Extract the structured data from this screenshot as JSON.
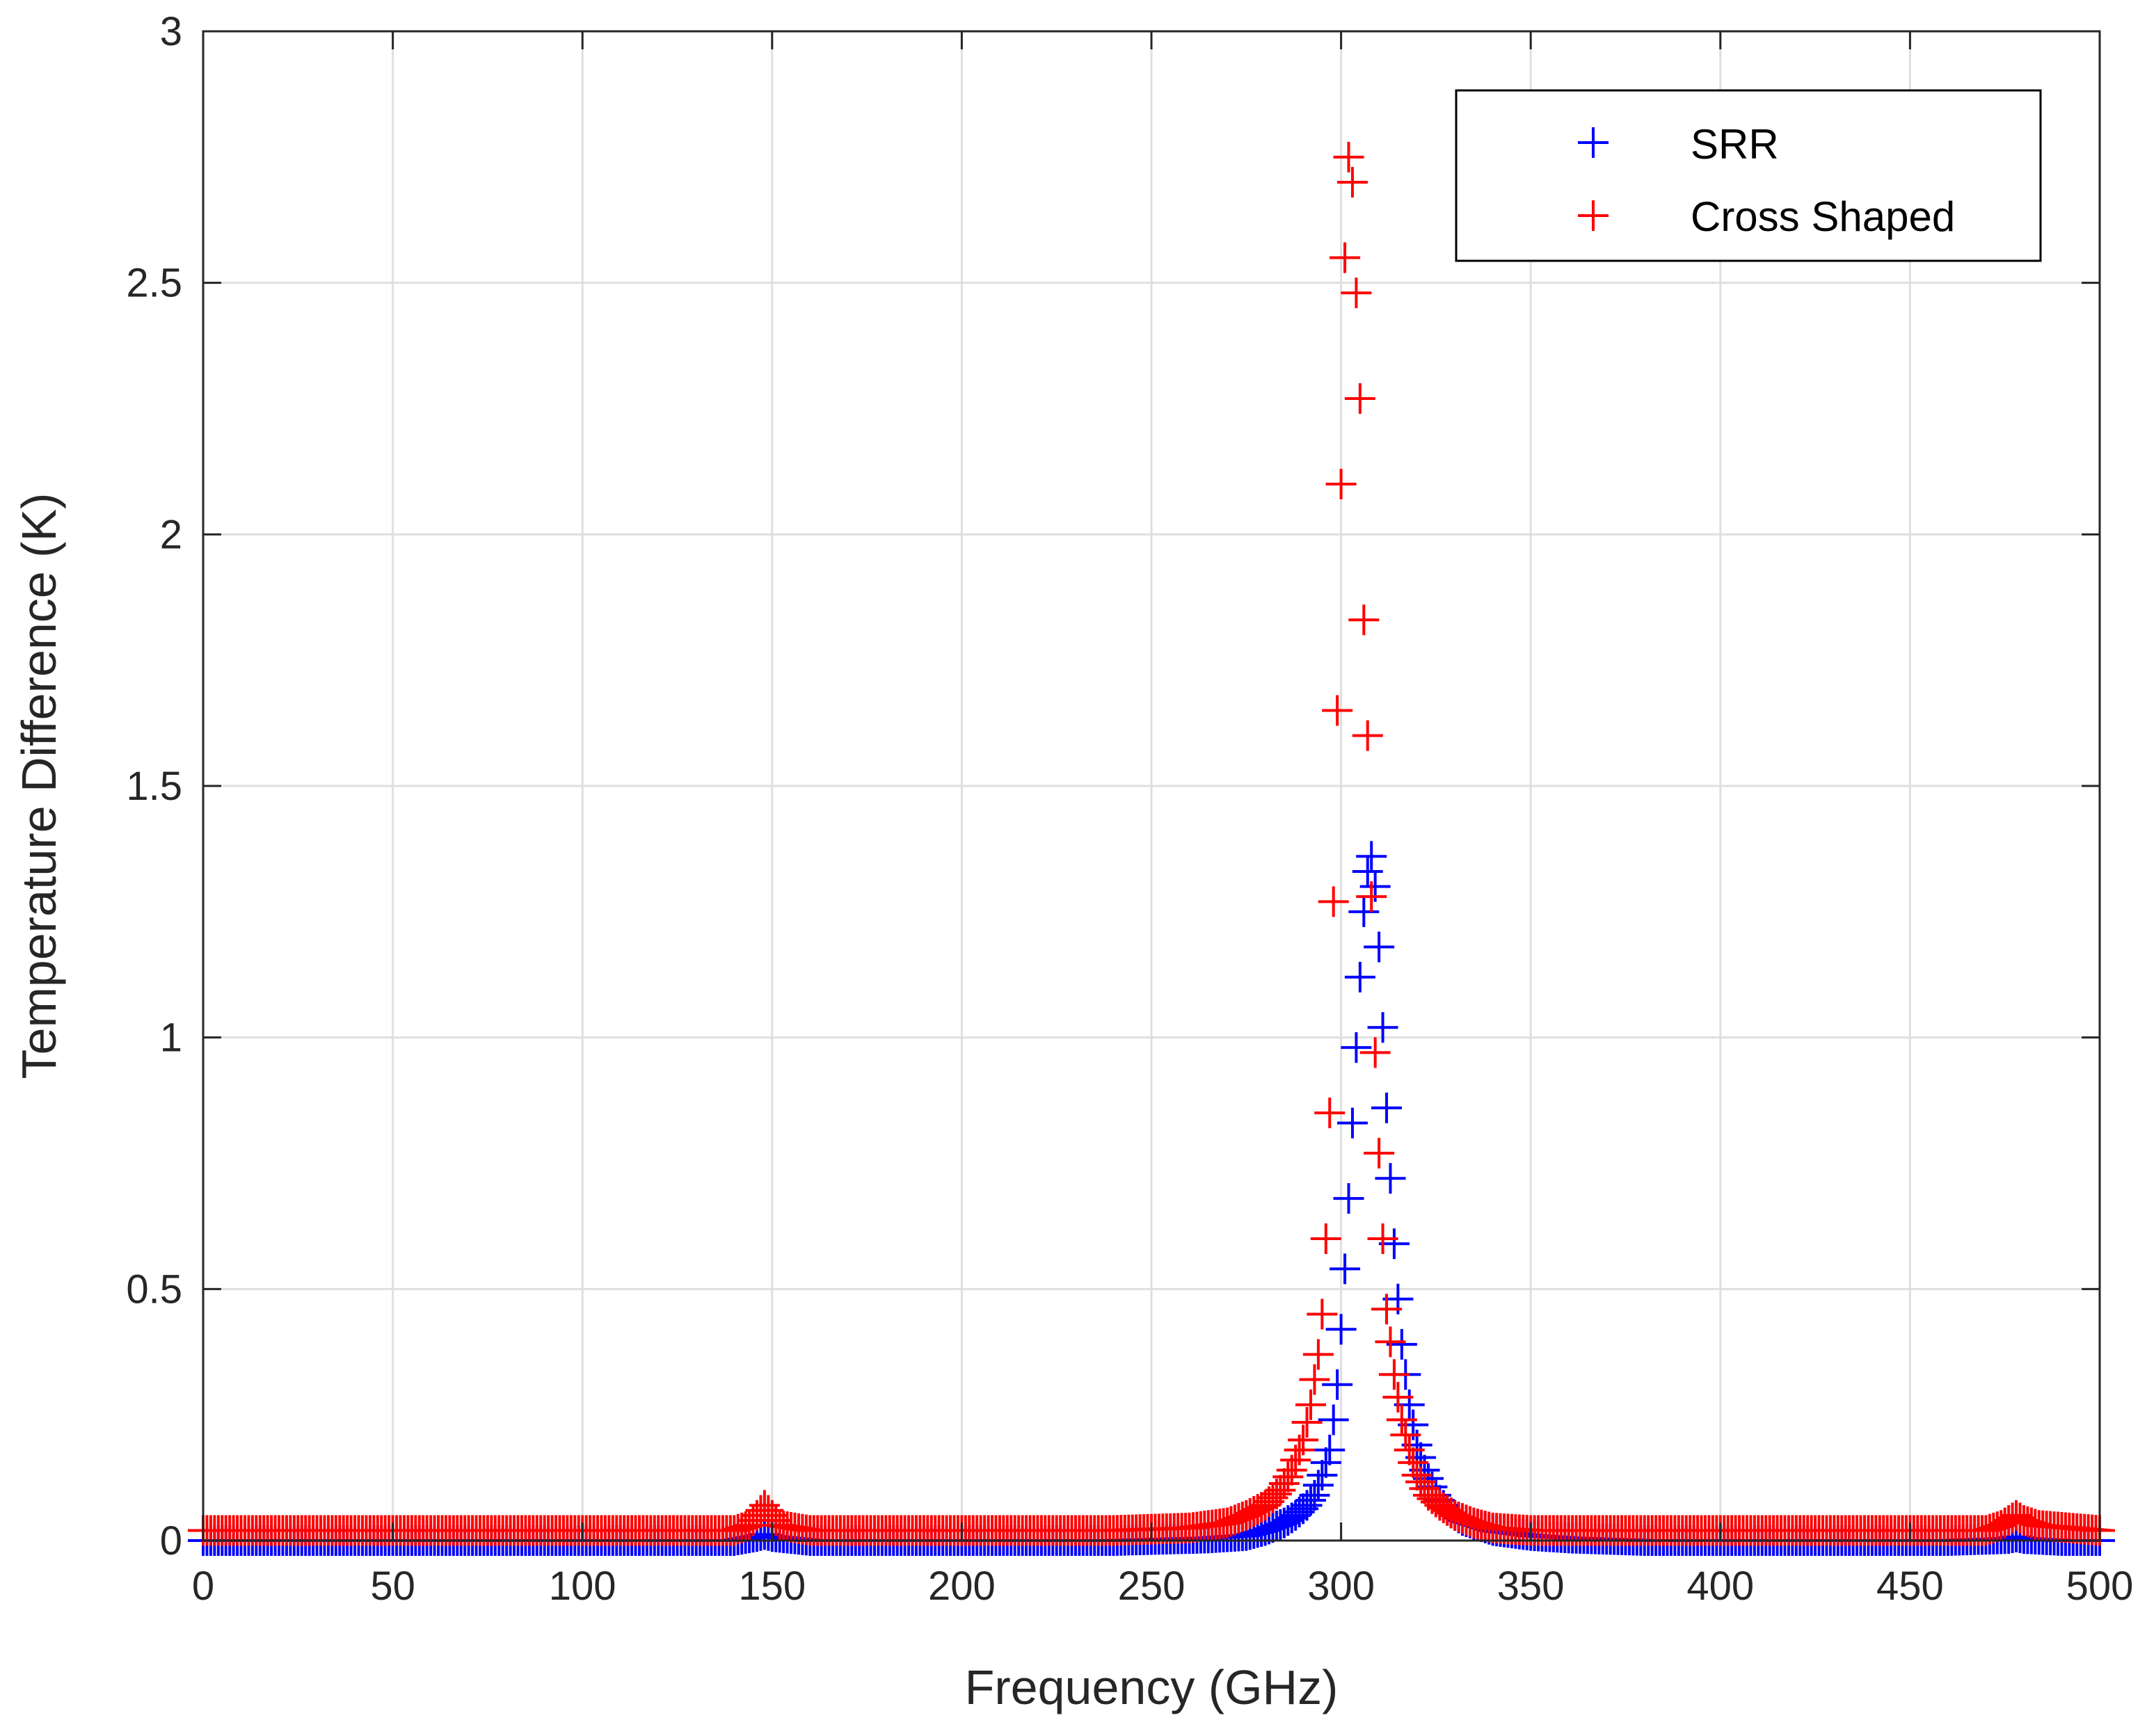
{
  "chart_data": {
    "type": "scatter",
    "title": "",
    "xlabel": "Frequency (GHz)",
    "ylabel": "Temperature Difference (K)",
    "xlim": [
      0,
      500
    ],
    "ylim": [
      0,
      3
    ],
    "xticks": [
      0,
      50,
      100,
      150,
      200,
      250,
      300,
      350,
      400,
      450,
      500
    ],
    "yticks": [
      0,
      0.5,
      1,
      1.5,
      2,
      2.5,
      3
    ],
    "xtick_labels": [
      "0",
      "50",
      "100",
      "150",
      "200",
      "250",
      "300",
      "350",
      "400",
      "450",
      "500"
    ],
    "ytick_labels": [
      "0",
      "0.5",
      "1",
      "1.5",
      "2",
      "2.5",
      "3"
    ],
    "grid": true,
    "legend_position": "top-right",
    "marker": "+",
    "series": [
      {
        "name": "SRR",
        "color": "#0000ff",
        "x": [
          0,
          30,
          60,
          90,
          120,
          140,
          146,
          148,
          150,
          160,
          200,
          240,
          265,
          275,
          280,
          285,
          288,
          291,
          293,
          295,
          297,
          298,
          299,
          300,
          301,
          302,
          303,
          304,
          305,
          306,
          307,
          308,
          309,
          310,
          311,
          312,
          313,
          314,
          315,
          316,
          318,
          320,
          322,
          325,
          328,
          332,
          336,
          340,
          345,
          350,
          360,
          380,
          420,
          460,
          476,
          478,
          480,
          490,
          500
        ],
        "y": [
          0,
          0,
          0,
          0,
          0,
          0,
          0.008,
          0.012,
          0.008,
          0,
          0,
          0,
          0.005,
          0.01,
          0.02,
          0.035,
          0.05,
          0.07,
          0.09,
          0.13,
          0.18,
          0.24,
          0.31,
          0.42,
          0.54,
          0.68,
          0.83,
          0.98,
          1.12,
          1.25,
          1.33,
          1.36,
          1.3,
          1.18,
          1.02,
          0.86,
          0.72,
          0.59,
          0.48,
          0.39,
          0.27,
          0.19,
          0.14,
          0.09,
          0.06,
          0.04,
          0.03,
          0.02,
          0.015,
          0.01,
          0.005,
          0,
          0,
          0,
          0.004,
          0.007,
          0.004,
          0,
          0
        ]
      },
      {
        "name": "Cross Shaped",
        "color": "#ff0000",
        "x": [
          0,
          30,
          60,
          90,
          120,
          140,
          144,
          146,
          148,
          150,
          152,
          160,
          200,
          240,
          260,
          270,
          275,
          280,
          284,
          287,
          290,
          292,
          294,
          295,
          296,
          297,
          298,
          299,
          300,
          301,
          302,
          303,
          304,
          305,
          306,
          307,
          308,
          309,
          310,
          311,
          312,
          314,
          316,
          318,
          320,
          323,
          326,
          330,
          335,
          340,
          350,
          370,
          400,
          440,
          470,
          474,
          476,
          478,
          480,
          484,
          500
        ],
        "y": [
          0.02,
          0.02,
          0.02,
          0.02,
          0.02,
          0.02,
          0.03,
          0.05,
          0.07,
          0.05,
          0.03,
          0.02,
          0.02,
          0.02,
          0.025,
          0.035,
          0.05,
          0.07,
          0.1,
          0.14,
          0.2,
          0.27,
          0.37,
          0.45,
          0.6,
          0.85,
          1.27,
          1.65,
          2.1,
          2.55,
          2.75,
          2.7,
          2.48,
          2.27,
          1.83,
          1.6,
          1.28,
          0.97,
          0.77,
          0.6,
          0.46,
          0.33,
          0.24,
          0.18,
          0.13,
          0.09,
          0.07,
          0.05,
          0.035,
          0.025,
          0.02,
          0.02,
          0.02,
          0.02,
          0.02,
          0.03,
          0.04,
          0.05,
          0.04,
          0.03,
          0.02
        ]
      }
    ]
  }
}
